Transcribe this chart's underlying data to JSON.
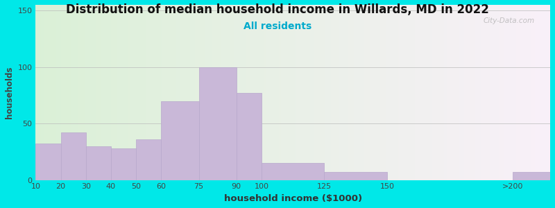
{
  "title": "Distribution of median household income in Willards, MD in 2022",
  "subtitle": "All residents",
  "xlabel": "household income ($1000)",
  "ylabel": "households",
  "title_fontsize": 12,
  "subtitle_fontsize": 10,
  "subtitle_color": "#00aacc",
  "xlabel_fontsize": 9.5,
  "ylabel_fontsize": 8.5,
  "bar_color": "#c9b8d8",
  "bar_edgecolor": "#b8a8cc",
  "background_color": "#00e8e8",
  "ylim": [
    0,
    155
  ],
  "yticks": [
    0,
    50,
    100,
    150
  ],
  "xlim": [
    10,
    215
  ],
  "xtick_positions": [
    10,
    20,
    30,
    40,
    50,
    60,
    75,
    90,
    100,
    125,
    150,
    200
  ],
  "xtick_labels": [
    "10",
    "20",
    "30",
    "40",
    "50",
    "60",
    "75",
    "90",
    "100",
    "125",
    "150",
    ">200"
  ],
  "bar_lefts": [
    10,
    20,
    30,
    40,
    50,
    60,
    75,
    90,
    100,
    125,
    150,
    200
  ],
  "bar_rights": [
    20,
    30,
    40,
    50,
    60,
    75,
    90,
    100,
    125,
    150,
    165,
    215
  ],
  "bar_heights": [
    32,
    42,
    30,
    28,
    36,
    70,
    100,
    77,
    15,
    7,
    0,
    7
  ],
  "watermark": "City-Data.com"
}
